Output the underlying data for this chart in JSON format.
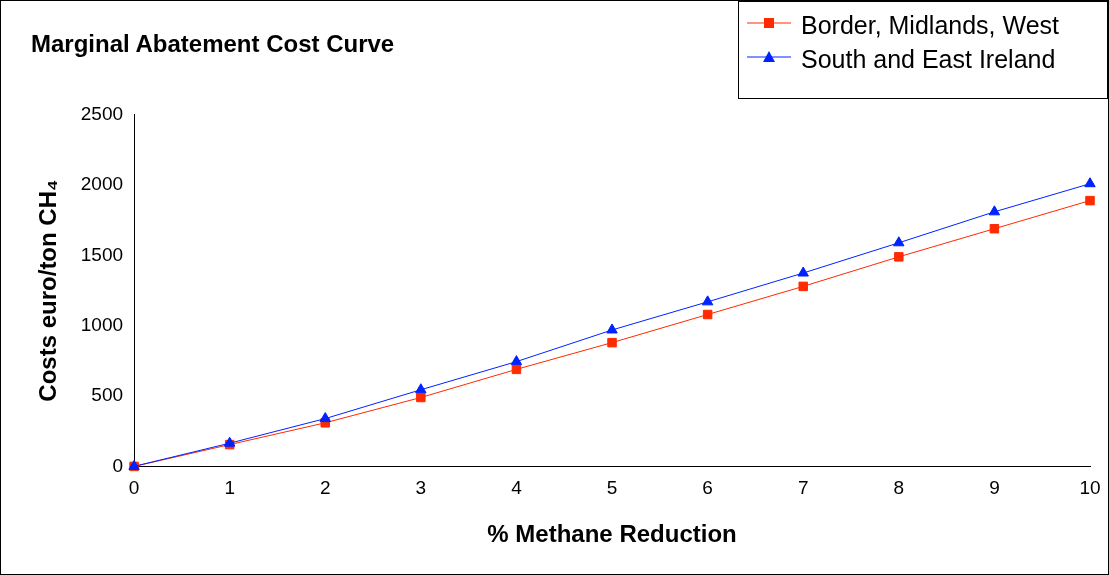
{
  "chart_data": {
    "type": "line",
    "title": "Marginal Abatement Cost Curve",
    "xlabel": "% Methane Reduction",
    "ylabel": "Costs euro/ton CH₄",
    "x": [
      0,
      1,
      2,
      3,
      4,
      5,
      6,
      7,
      8,
      9,
      10
    ],
    "series": [
      {
        "name": "Border, Midlands, West",
        "color": "#ff2a00",
        "marker": "square",
        "values": [
          0,
          155,
          310,
          490,
          690,
          880,
          1080,
          1280,
          1490,
          1690,
          1890
        ]
      },
      {
        "name": "South and East Ireland",
        "color": "#0022ff",
        "marker": "triangle",
        "values": [
          0,
          165,
          340,
          545,
          745,
          970,
          1170,
          1375,
          1590,
          1810,
          2010
        ]
      }
    ],
    "xlim": [
      0,
      10
    ],
    "xticks": [
      0,
      1,
      2,
      3,
      4,
      5,
      6,
      7,
      8,
      9,
      10
    ],
    "ylim": [
      0,
      2500
    ],
    "yticks": [
      0,
      500,
      1000,
      1500,
      2000,
      2500
    ],
    "grid": false,
    "legend": "top right"
  }
}
